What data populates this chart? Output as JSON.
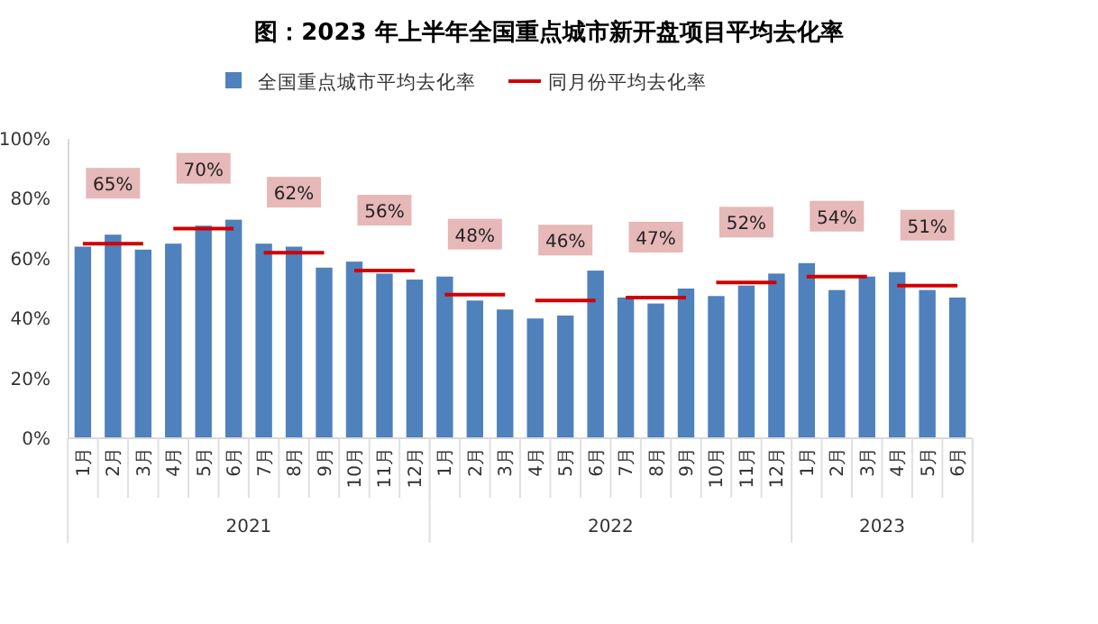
{
  "chart_data": {
    "type": "bar",
    "title": "图：2023 年上半年全国重点城市新开盘项目平均去化率",
    "categories": [
      "1月",
      "2月",
      "3月",
      "4月",
      "5月",
      "6月",
      "7月",
      "8月",
      "9月",
      "10月",
      "11月",
      "12月",
      "1月",
      "2月",
      "3月",
      "4月",
      "5月",
      "6月",
      "7月",
      "8月",
      "9月",
      "10月",
      "11月",
      "12月",
      "1月",
      "2月",
      "3月",
      "4月",
      "5月",
      "6月"
    ],
    "series": [
      {
        "name": "全国重点城市平均去化率",
        "color": "#4f81bd",
        "values": [
          64,
          68,
          63,
          65,
          71,
          73,
          65,
          64,
          57,
          59,
          55,
          53,
          54,
          46,
          43,
          40,
          41,
          56,
          47,
          45,
          50,
          47.5,
          51,
          55,
          58.5,
          49.5,
          54,
          55.5,
          49.5,
          47
        ]
      },
      {
        "name": "同月份平均去化率",
        "type": "line",
        "color": "#d00000",
        "values": [
          65,
          65,
          65,
          70,
          70,
          70,
          62,
          62,
          62,
          56,
          56,
          56,
          48,
          48,
          48,
          46,
          46,
          46,
          47,
          47,
          47,
          52,
          52,
          52,
          54,
          54,
          54,
          51,
          51,
          51
        ],
        "value_labels": [
          null,
          "65%",
          null,
          null,
          "70%",
          null,
          null,
          "62%",
          null,
          null,
          "56%",
          null,
          null,
          "48%",
          null,
          null,
          "46%",
          null,
          null,
          "47%",
          null,
          null,
          "52%",
          null,
          null,
          "54%",
          null,
          null,
          "51%",
          null
        ]
      }
    ],
    "ylim": [
      0,
      100
    ],
    "yticks": [
      {
        "value": 0,
        "label": "0%"
      },
      {
        "value": 20,
        "label": "20%"
      },
      {
        "value": 40,
        "label": "40%"
      },
      {
        "value": 60,
        "label": "60%"
      },
      {
        "value": 80,
        "label": "80%"
      },
      {
        "value": 100,
        "label": "100%"
      }
    ],
    "legend": "top",
    "annotations": [
      "2021",
      "2022",
      "2023"
    ]
  }
}
